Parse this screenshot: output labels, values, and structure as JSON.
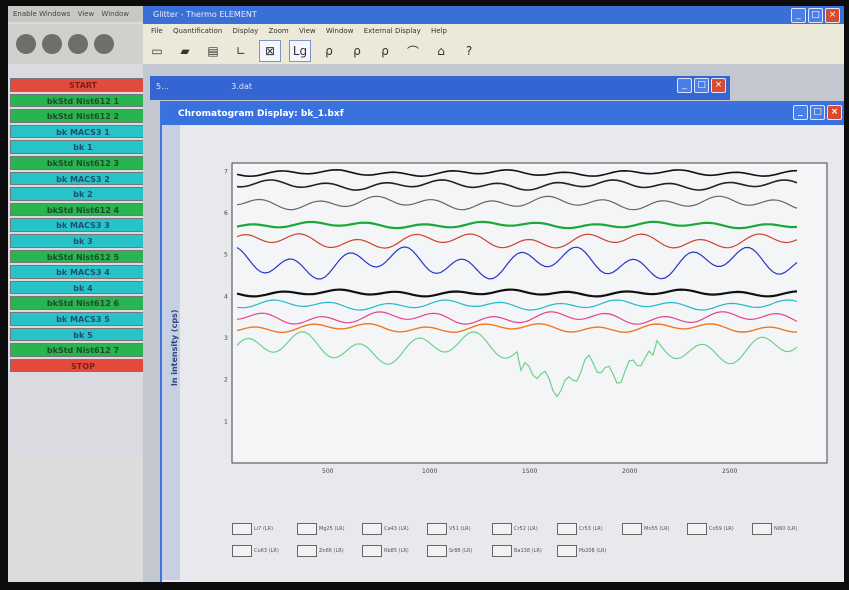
{
  "left_app": {
    "menu": [
      "Enable Windows",
      "View",
      "Window"
    ],
    "sequence": [
      {
        "label": "START",
        "color": "red"
      },
      {
        "label": "bkStd Nist612 1",
        "color": "green"
      },
      {
        "label": "bkStd Nist612 2",
        "color": "green"
      },
      {
        "label": "bk MACS3 1",
        "color": "cyan"
      },
      {
        "label": "bk 1",
        "color": "cyan"
      },
      {
        "label": "bkStd Nist612 3",
        "color": "green"
      },
      {
        "label": "bk MACS3 2",
        "color": "cyan"
      },
      {
        "label": "bk 2",
        "color": "cyan"
      },
      {
        "label": "bkStd Nist612 4",
        "color": "green"
      },
      {
        "label": "bk MACS3 3",
        "color": "cyan"
      },
      {
        "label": "bk 3",
        "color": "cyan"
      },
      {
        "label": "bkStd Nist612 5",
        "color": "green"
      },
      {
        "label": "bk MACS3 4",
        "color": "cyan"
      },
      {
        "label": "bk 4",
        "color": "cyan"
      },
      {
        "label": "bkStd Nist612 6",
        "color": "green"
      },
      {
        "label": "bk MACS3 5",
        "color": "cyan"
      },
      {
        "label": "bk 5",
        "color": "cyan"
      },
      {
        "label": "bkStd Nist612 7",
        "color": "green"
      },
      {
        "label": "STOP",
        "color": "red"
      }
    ]
  },
  "main_window": {
    "title": "Glitter - Thermo ELEMENT",
    "menu": [
      "File",
      "Quantification",
      "Display",
      "Zoom",
      "View",
      "Window",
      "External Display",
      "Help"
    ],
    "toolbar_log": "Lg"
  },
  "child_window_1": {
    "title": "5...",
    "file": "3.dat"
  },
  "chromatogram": {
    "title": "Chromatogram Display: bk_1.bxf",
    "side_label": "ln intensity (cps)",
    "y_ticks": [
      "1",
      "2",
      "3",
      "4",
      "5",
      "6",
      "7"
    ],
    "x_ticks": [
      "500",
      "1000",
      "1500",
      "2000",
      "2500"
    ],
    "legend": [
      "Li7 (LR)",
      "Mg25 (LR)",
      "Ca43 (LR)",
      "V51 (LR)",
      "Cr52 (LR)",
      "Cr53 (LR)",
      "Mn55 (LR)",
      "Co59 (LR)",
      "Ni60 (LR)",
      "Cu63 (LR)",
      "Zn66 (LR)",
      "Rb85 (LR)",
      "Sr88 (LR)",
      "Ba138 (LR)",
      "Pb208 (LR)"
    ]
  },
  "colors": {
    "titlebar": "#3a6fd6",
    "green": "#28b44e",
    "red": "#e34a3c",
    "cyan": "#27c3c8"
  }
}
